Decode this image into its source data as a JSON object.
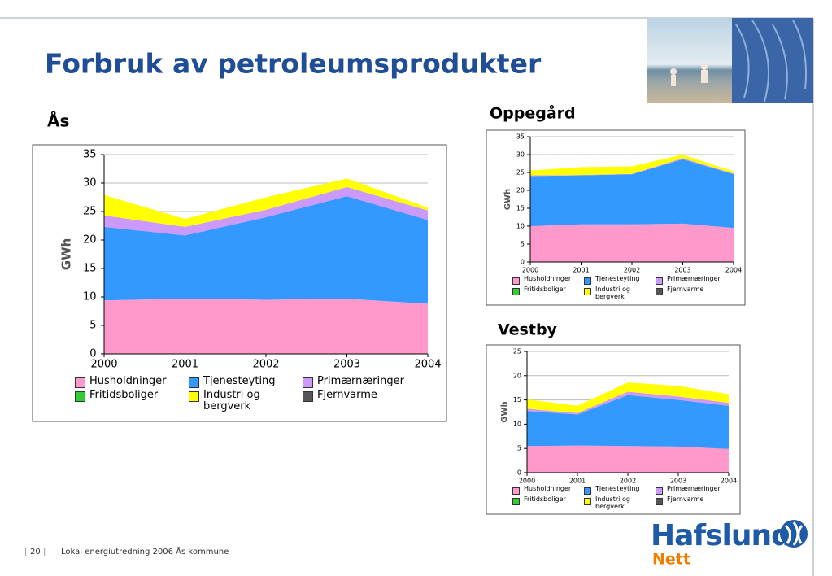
{
  "slide": {
    "title": "Forbruk av petroleumsprodukter",
    "page_number": "20",
    "footer": "Lokal energiutredning 2006 Ås kommune",
    "logo": "Hafslund",
    "logo_sub": "Nett"
  },
  "chart_data": [
    {
      "type": "stacked-area",
      "title": "Ås",
      "y_label": "GWh",
      "categories": [
        "2000",
        "2001",
        "2002",
        "2003",
        "2004"
      ],
      "ylim": [
        0,
        35
      ],
      "yticks": [
        0,
        5,
        10,
        15,
        20,
        25,
        30,
        35
      ],
      "grid": true,
      "series": [
        {
          "name": "Husholdninger",
          "color": "#ff99cc",
          "values": [
            9.4,
            9.7,
            9.5,
            9.7,
            8.8
          ]
        },
        {
          "name": "Tjenesteyting",
          "color": "#3399ff",
          "values": [
            12.9,
            11.1,
            14.5,
            18.0,
            14.7
          ]
        },
        {
          "name": "Primærnæringer",
          "color": "#cc99ff",
          "values": [
            2.0,
            1.5,
            1.3,
            1.6,
            1.7
          ]
        },
        {
          "name": "Fritidsboliger",
          "color": "#33cc33",
          "values": [
            0,
            0,
            0,
            0,
            0
          ]
        },
        {
          "name": "Industri og bergverk",
          "color": "#ffff00",
          "values": [
            3.6,
            1.4,
            2.2,
            1.5,
            0.5
          ]
        },
        {
          "name": "Fjernvarme",
          "color": "#555555",
          "values": [
            0,
            0,
            0,
            0,
            0
          ]
        }
      ]
    },
    {
      "type": "stacked-area",
      "title": "Oppegård",
      "y_label": "GWh",
      "categories": [
        "2000",
        "2001",
        "2002",
        "2003",
        "2004"
      ],
      "ylim": [
        0,
        35
      ],
      "yticks": [
        0,
        5,
        10,
        15,
        20,
        25,
        30,
        35
      ],
      "grid": true,
      "series": [
        {
          "name": "Husholdninger",
          "color": "#ff99cc",
          "values": [
            10.0,
            10.5,
            10.5,
            10.7,
            9.5
          ]
        },
        {
          "name": "Tjenesteyting",
          "color": "#3399ff",
          "values": [
            14.0,
            13.7,
            14.0,
            18.0,
            15.0
          ]
        },
        {
          "name": "Primærnæringer",
          "color": "#cc99ff",
          "values": [
            0.2,
            0.1,
            0.1,
            0.3,
            0.2
          ]
        },
        {
          "name": "Fritidsboliger",
          "color": "#33cc33",
          "values": [
            0,
            0,
            0,
            0,
            0
          ]
        },
        {
          "name": "Industri og bergverk",
          "color": "#ffff00",
          "values": [
            1.3,
            2.2,
            2.1,
            1.0,
            0.6
          ]
        },
        {
          "name": "Fjernvarme",
          "color": "#555555",
          "values": [
            0,
            0,
            0,
            0,
            0
          ]
        }
      ]
    },
    {
      "type": "stacked-area",
      "title": "Vestby",
      "y_label": "GWh",
      "categories": [
        "2000",
        "2001",
        "2002",
        "2003",
        "2004"
      ],
      "ylim": [
        0,
        25
      ],
      "yticks": [
        0,
        5,
        10,
        15,
        20,
        25
      ],
      "grid": true,
      "series": [
        {
          "name": "Husholdninger",
          "color": "#ff99cc",
          "values": [
            5.5,
            5.6,
            5.5,
            5.4,
            4.9
          ]
        },
        {
          "name": "Tjenesteyting",
          "color": "#3399ff",
          "values": [
            7.2,
            6.4,
            10.5,
            9.6,
            8.9
          ]
        },
        {
          "name": "Primærnæringer",
          "color": "#cc99ff",
          "values": [
            0.5,
            0.3,
            0.7,
            0.7,
            0.6
          ]
        },
        {
          "name": "Fritidsboliger",
          "color": "#33cc33",
          "values": [
            0,
            0,
            0,
            0,
            0
          ]
        },
        {
          "name": "Industri og bergverk",
          "color": "#ffff00",
          "values": [
            1.9,
            1.5,
            1.9,
            2.2,
            1.8
          ]
        },
        {
          "name": "Fjernvarme",
          "color": "#555555",
          "values": [
            0,
            0,
            0,
            0,
            0
          ]
        }
      ]
    }
  ]
}
